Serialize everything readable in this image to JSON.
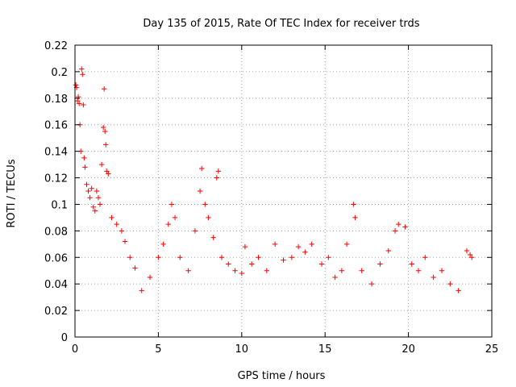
{
  "chart_data": {
    "type": "scatter",
    "title": "Day 135 of 2015, Rate Of TEC Index for receiver trds",
    "xlabel": "GPS time / hours",
    "ylabel": "ROTI / TECUs",
    "xlim": [
      0,
      25
    ],
    "ylim": [
      0,
      0.22
    ],
    "x_ticks": [
      "0",
      "5",
      "10",
      "15",
      "20",
      "25"
    ],
    "y_ticks": [
      "0",
      "0.02",
      "0.04",
      "0.06",
      "0.08",
      "0.1",
      "0.12",
      "0.14",
      "0.16",
      "0.18",
      "0.2",
      "0.22"
    ],
    "grid": true,
    "marker": "+",
    "color": "#ff0000",
    "series": [
      {
        "points": [
          [
            0.05,
            0.19
          ],
          [
            0.1,
            0.188
          ],
          [
            0.15,
            0.178
          ],
          [
            0.2,
            0.181
          ],
          [
            0.25,
            0.176
          ],
          [
            0.3,
            0.16
          ],
          [
            0.35,
            0.14
          ],
          [
            0.4,
            0.202
          ],
          [
            0.45,
            0.198
          ],
          [
            0.5,
            0.175
          ],
          [
            0.55,
            0.135
          ],
          [
            0.6,
            0.128
          ],
          [
            0.7,
            0.115
          ],
          [
            0.8,
            0.11
          ],
          [
            0.9,
            0.105
          ],
          [
            1.0,
            0.112
          ],
          [
            1.1,
            0.098
          ],
          [
            1.2,
            0.095
          ],
          [
            1.3,
            0.11
          ],
          [
            1.4,
            0.105
          ],
          [
            1.5,
            0.1
          ],
          [
            1.6,
            0.13
          ],
          [
            1.7,
            0.158
          ],
          [
            1.75,
            0.187
          ],
          [
            1.8,
            0.155
          ],
          [
            1.85,
            0.145
          ],
          [
            1.9,
            0.125
          ],
          [
            2.0,
            0.123
          ],
          [
            2.2,
            0.09
          ],
          [
            2.5,
            0.085
          ],
          [
            2.8,
            0.08
          ],
          [
            3.0,
            0.072
          ],
          [
            3.3,
            0.06
          ],
          [
            3.6,
            0.052
          ],
          [
            4.0,
            0.035
          ],
          [
            4.5,
            0.045
          ],
          [
            5.0,
            0.06
          ],
          [
            5.3,
            0.07
          ],
          [
            5.6,
            0.085
          ],
          [
            5.8,
            0.1
          ],
          [
            6.0,
            0.09
          ],
          [
            6.3,
            0.06
          ],
          [
            6.8,
            0.05
          ],
          [
            7.2,
            0.08
          ],
          [
            7.5,
            0.11
          ],
          [
            7.6,
            0.127
          ],
          [
            7.8,
            0.1
          ],
          [
            8.0,
            0.09
          ],
          [
            8.3,
            0.075
          ],
          [
            8.5,
            0.12
          ],
          [
            8.6,
            0.125
          ],
          [
            8.8,
            0.06
          ],
          [
            9.2,
            0.055
          ],
          [
            9.6,
            0.05
          ],
          [
            10.0,
            0.048
          ],
          [
            10.2,
            0.068
          ],
          [
            10.6,
            0.055
          ],
          [
            11.0,
            0.06
          ],
          [
            11.5,
            0.05
          ],
          [
            12.0,
            0.07
          ],
          [
            12.5,
            0.058
          ],
          [
            13.0,
            0.06
          ],
          [
            13.4,
            0.068
          ],
          [
            13.8,
            0.064
          ],
          [
            14.2,
            0.07
          ],
          [
            14.8,
            0.055
          ],
          [
            15.2,
            0.06
          ],
          [
            15.6,
            0.045
          ],
          [
            16.0,
            0.05
          ],
          [
            16.3,
            0.07
          ],
          [
            16.7,
            0.1
          ],
          [
            16.8,
            0.09
          ],
          [
            17.2,
            0.05
          ],
          [
            17.8,
            0.04
          ],
          [
            18.3,
            0.055
          ],
          [
            18.8,
            0.065
          ],
          [
            19.2,
            0.08
          ],
          [
            19.4,
            0.085
          ],
          [
            19.8,
            0.083
          ],
          [
            20.2,
            0.055
          ],
          [
            20.6,
            0.05
          ],
          [
            21.0,
            0.06
          ],
          [
            21.5,
            0.045
          ],
          [
            22.0,
            0.05
          ],
          [
            22.5,
            0.04
          ],
          [
            23.0,
            0.035
          ],
          [
            23.5,
            0.065
          ],
          [
            23.7,
            0.062
          ],
          [
            23.8,
            0.06
          ]
        ]
      }
    ]
  }
}
